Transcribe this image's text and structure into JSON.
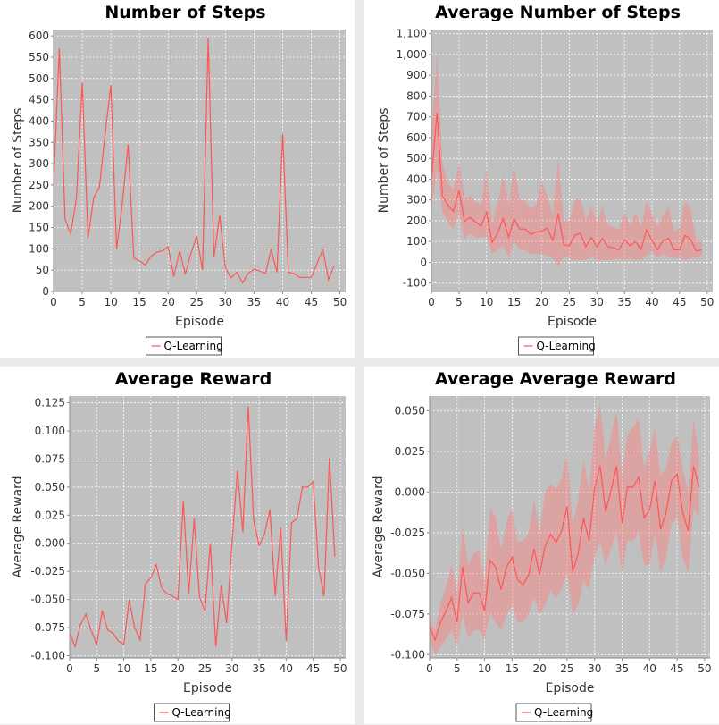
{
  "colors": {
    "plot_bg": "#c0c0c0",
    "grid": "#ffffff",
    "line": "#ff5555",
    "band": "#ff8080"
  },
  "legend_label": "Q-Learning",
  "chart_data": [
    {
      "type": "line",
      "title": "Number of Steps",
      "xlabel": "Episode",
      "ylabel": "Number of Steps",
      "xlim": [
        0,
        51
      ],
      "ylim": [
        0,
        615
      ],
      "xticks": [
        0,
        5,
        10,
        15,
        20,
        25,
        30,
        35,
        40,
        45,
        50
      ],
      "yticks": [
        0,
        50,
        100,
        150,
        200,
        250,
        300,
        350,
        400,
        450,
        500,
        550,
        600
      ],
      "legend": "bottom",
      "series": [
        {
          "name": "Q-Learning",
          "x": [
            0,
            1,
            2,
            3,
            4,
            5,
            6,
            7,
            8,
            9,
            10,
            11,
            12,
            13,
            14,
            15,
            16,
            17,
            18,
            19,
            20,
            21,
            22,
            23,
            24,
            25,
            26,
            27,
            28,
            29,
            30,
            31,
            32,
            33,
            34,
            35,
            36,
            37,
            38,
            39,
            40,
            41,
            42,
            43,
            44,
            45,
            46,
            47,
            48,
            49
          ],
          "y": [
            250,
            570,
            170,
            135,
            220,
            490,
            125,
            220,
            245,
            370,
            485,
            100,
            205,
            345,
            78,
            72,
            62,
            82,
            92,
            95,
            105,
            35,
            95,
            40,
            90,
            130,
            50,
            595,
            80,
            178,
            55,
            32,
            45,
            20,
            43,
            52,
            48,
            42,
            98,
            45,
            370,
            45,
            42,
            33,
            33,
            33,
            65,
            98,
            28,
            60
          ]
        }
      ]
    },
    {
      "type": "line",
      "title": "Average Number of Steps",
      "xlabel": "Episode",
      "ylabel": "Number of Steps",
      "xlim": [
        0,
        51
      ],
      "ylim": [
        -140,
        1120
      ],
      "xticks": [
        0,
        5,
        10,
        15,
        20,
        25,
        30,
        35,
        40,
        45,
        50
      ],
      "yticks": [
        -100,
        0,
        100,
        200,
        300,
        400,
        500,
        600,
        700,
        800,
        900,
        1000,
        1100
      ],
      "legend": "bottom",
      "series": [
        {
          "name": "Q-Learning",
          "x": [
            0,
            1,
            2,
            3,
            4,
            5,
            6,
            7,
            8,
            9,
            10,
            11,
            12,
            13,
            14,
            15,
            16,
            17,
            18,
            19,
            20,
            21,
            22,
            23,
            24,
            25,
            26,
            27,
            28,
            29,
            30,
            31,
            32,
            33,
            34,
            35,
            36,
            37,
            38,
            39,
            40,
            41,
            42,
            43,
            44,
            45,
            46,
            47,
            48,
            49
          ],
          "y": [
            400,
            720,
            320,
            275,
            245,
            345,
            195,
            215,
            195,
            175,
            240,
            95,
            140,
            210,
            120,
            210,
            160,
            160,
            135,
            145,
            150,
            165,
            105,
            235,
            85,
            80,
            130,
            140,
            75,
            120,
            75,
            115,
            75,
            70,
            60,
            110,
            80,
            100,
            60,
            155,
            105,
            60,
            105,
            115,
            60,
            60,
            130,
            110,
            55,
            60
          ],
          "band_lower": [
            250,
            450,
            240,
            190,
            160,
            230,
            110,
            140,
            120,
            120,
            120,
            40,
            60,
            80,
            20,
            100,
            60,
            60,
            40,
            40,
            40,
            30,
            20,
            -20,
            30,
            20,
            10,
            10,
            10,
            30,
            10,
            10,
            10,
            10,
            20,
            10,
            20,
            10,
            10,
            30,
            50,
            20,
            40,
            20,
            20,
            20,
            10,
            20,
            20,
            30
          ],
          "band_upper": [
            600,
            1010,
            480,
            380,
            350,
            480,
            310,
            320,
            290,
            280,
            450,
            190,
            280,
            420,
            280,
            470,
            300,
            300,
            260,
            280,
            390,
            320,
            230,
            500,
            200,
            200,
            300,
            310,
            200,
            270,
            190,
            270,
            180,
            170,
            160,
            240,
            180,
            240,
            170,
            300,
            230,
            170,
            230,
            270,
            150,
            160,
            300,
            250,
            110,
            110
          ]
        }
      ]
    },
    {
      "type": "line",
      "title": "Average Reward",
      "xlabel": "Episode",
      "ylabel": "Average Reward",
      "xlim": [
        0,
        51
      ],
      "ylim": [
        -0.102,
        0.131
      ],
      "xticks": [
        0,
        5,
        10,
        15,
        20,
        25,
        30,
        35,
        40,
        45,
        50
      ],
      "yticks": [
        -0.1,
        -0.075,
        -0.05,
        -0.025,
        0.0,
        0.025,
        0.05,
        0.075,
        0.1,
        0.125
      ],
      "legend": "bottom",
      "series": [
        {
          "name": "Q-Learning",
          "x": [
            0,
            1,
            2,
            3,
            4,
            5,
            6,
            7,
            8,
            9,
            10,
            11,
            12,
            13,
            14,
            15,
            16,
            17,
            18,
            19,
            20,
            21,
            22,
            23,
            24,
            25,
            26,
            27,
            28,
            29,
            30,
            31,
            32,
            33,
            34,
            35,
            36,
            37,
            38,
            39,
            40,
            41,
            42,
            43,
            44,
            45,
            46,
            47,
            48,
            49
          ],
          "y": [
            -0.08,
            -0.092,
            -0.072,
            -0.063,
            -0.078,
            -0.09,
            -0.06,
            -0.077,
            -0.08,
            -0.087,
            -0.09,
            -0.05,
            -0.075,
            -0.086,
            -0.036,
            -0.031,
            -0.019,
            -0.04,
            -0.045,
            -0.047,
            -0.05,
            0.038,
            -0.045,
            0.022,
            -0.048,
            -0.06,
            0.0,
            -0.092,
            -0.037,
            -0.071,
            0.0,
            0.065,
            0.01,
            0.122,
            0.02,
            -0.002,
            0.008,
            0.03,
            -0.047,
            0.014,
            -0.087,
            0.018,
            0.022,
            0.05,
            0.05,
            0.055,
            -0.022,
            -0.047,
            0.076,
            -0.012
          ]
        }
      ]
    },
    {
      "type": "line",
      "title": "Average Average Reward",
      "xlabel": "Episode",
      "ylabel": "Average Reward",
      "xlim": [
        0,
        51
      ],
      "ylim": [
        -0.102,
        0.059
      ],
      "xticks": [
        0,
        5,
        10,
        15,
        20,
        25,
        30,
        35,
        40,
        45,
        50
      ],
      "yticks": [
        -0.1,
        -0.075,
        -0.05,
        -0.025,
        0.0,
        0.025,
        0.05
      ],
      "legend": "bottom",
      "series": [
        {
          "name": "Q-Learning",
          "x": [
            0,
            1,
            2,
            3,
            4,
            5,
            6,
            7,
            8,
            9,
            10,
            11,
            12,
            13,
            14,
            15,
            16,
            17,
            18,
            19,
            20,
            21,
            22,
            23,
            24,
            25,
            26,
            27,
            28,
            29,
            30,
            31,
            32,
            33,
            34,
            35,
            36,
            37,
            38,
            39,
            40,
            41,
            42,
            43,
            44,
            45,
            46,
            47,
            48,
            49
          ],
          "y": [
            -0.083,
            -0.091,
            -0.08,
            -0.073,
            -0.065,
            -0.08,
            -0.046,
            -0.068,
            -0.062,
            -0.062,
            -0.073,
            -0.042,
            -0.046,
            -0.06,
            -0.046,
            -0.04,
            -0.054,
            -0.057,
            -0.051,
            -0.035,
            -0.051,
            -0.033,
            -0.026,
            -0.031,
            -0.024,
            -0.009,
            -0.049,
            -0.038,
            -0.016,
            -0.03,
            0.002,
            0.016,
            -0.012,
            0.001,
            0.016,
            -0.019,
            0.003,
            0.003,
            0.009,
            -0.016,
            -0.011,
            0.007,
            -0.023,
            -0.013,
            0.007,
            0.011,
            -0.012,
            -0.024,
            0.016,
            0.003
          ],
          "band_lower": [
            -0.09,
            -0.1,
            -0.095,
            -0.09,
            -0.085,
            -0.095,
            -0.075,
            -0.09,
            -0.085,
            -0.085,
            -0.09,
            -0.075,
            -0.08,
            -0.085,
            -0.075,
            -0.07,
            -0.08,
            -0.08,
            -0.075,
            -0.065,
            -0.075,
            -0.07,
            -0.06,
            -0.065,
            -0.06,
            -0.05,
            -0.075,
            -0.07,
            -0.055,
            -0.06,
            -0.04,
            -0.03,
            -0.045,
            -0.035,
            -0.025,
            -0.05,
            -0.03,
            -0.03,
            -0.025,
            -0.045,
            -0.045,
            -0.025,
            -0.05,
            -0.04,
            -0.02,
            -0.015,
            -0.04,
            -0.05,
            -0.01,
            -0.015
          ],
          "band_upper": [
            -0.078,
            -0.085,
            -0.068,
            -0.058,
            -0.045,
            -0.062,
            -0.02,
            -0.045,
            -0.038,
            -0.035,
            -0.055,
            -0.01,
            -0.015,
            -0.035,
            -0.018,
            -0.01,
            -0.03,
            -0.03,
            -0.025,
            -0.005,
            -0.025,
            0.0,
            0.005,
            0.002,
            0.008,
            0.025,
            -0.02,
            -0.005,
            0.02,
            0.0,
            0.04,
            0.055,
            0.02,
            0.035,
            0.05,
            0.01,
            0.035,
            0.04,
            0.045,
            0.015,
            0.025,
            0.04,
            0.01,
            0.015,
            0.03,
            0.035,
            0.015,
            0.0,
            0.045,
            0.022
          ]
        }
      ]
    }
  ]
}
